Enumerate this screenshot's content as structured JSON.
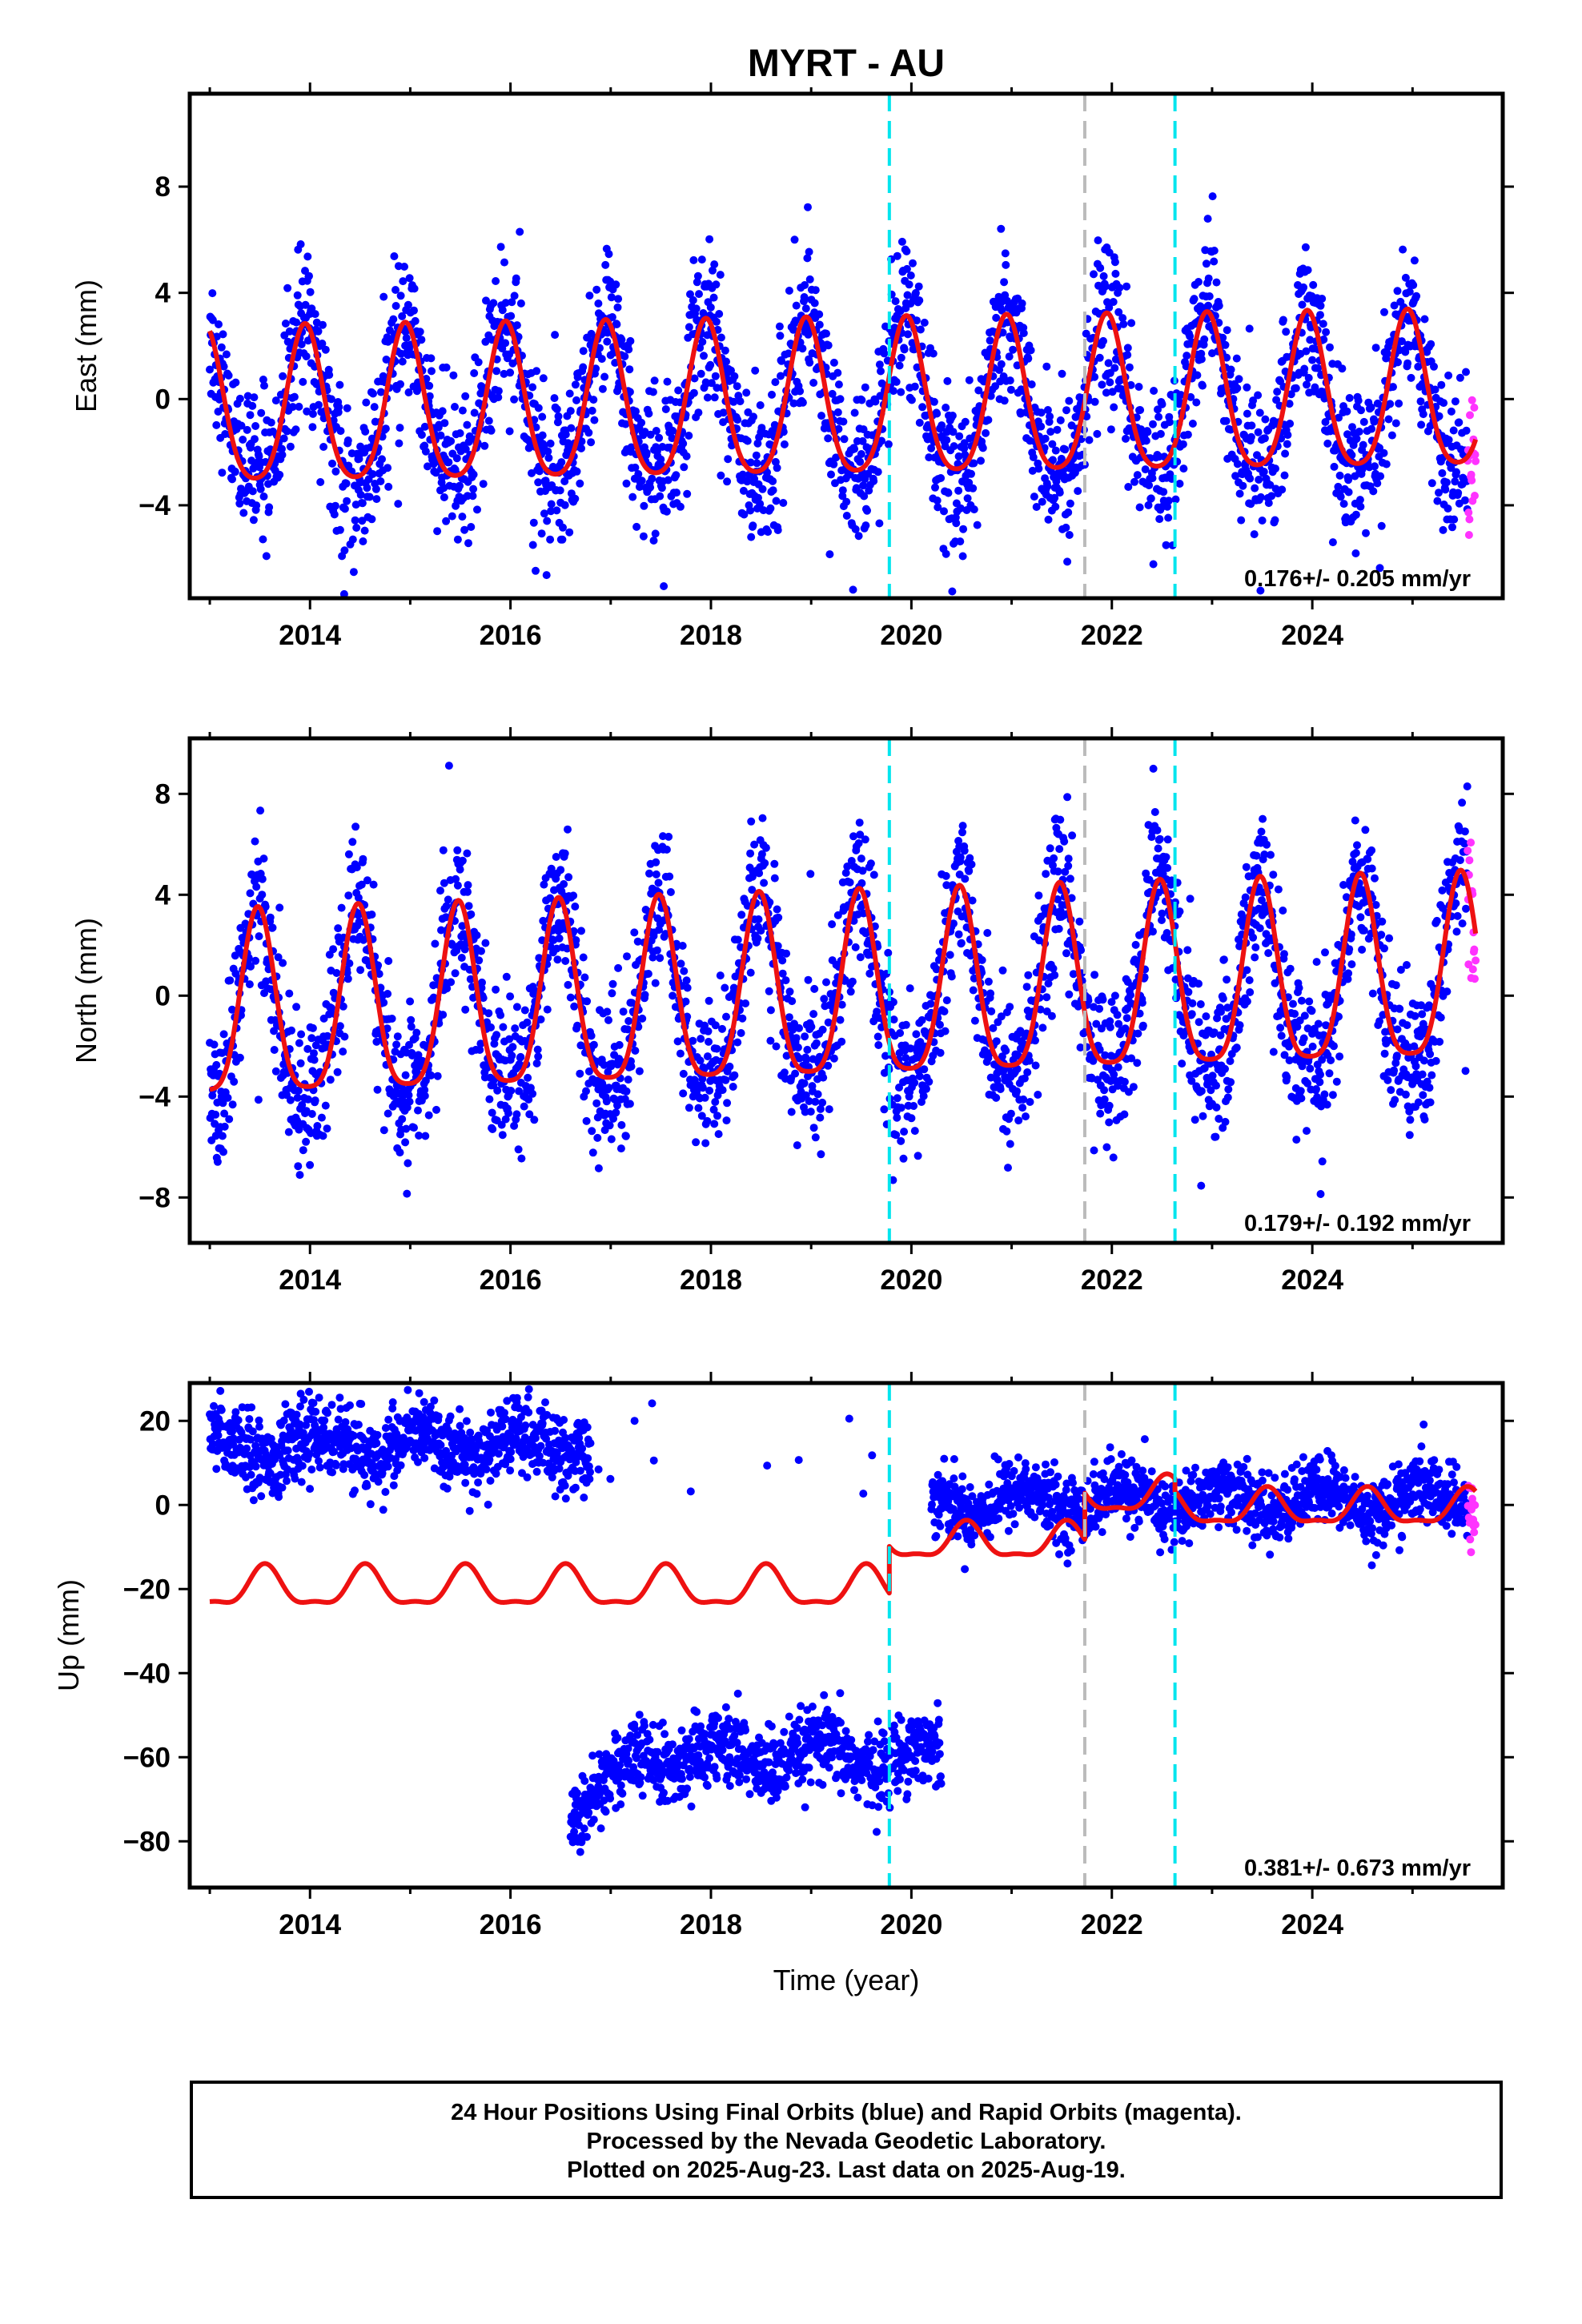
{
  "title": "MYRT - AU",
  "xlabel": "Time (year)",
  "colors": {
    "final_orbits": "#0000ff",
    "rapid_orbits": "#ff33ff",
    "model_fit": "#ee1111",
    "equipment_change": "#00e5ee",
    "earthquake_offset": "#bbbbbb"
  },
  "chart_data": [
    {
      "type": "scatter",
      "component": "east",
      "ylabel": "East (mm)",
      "rate_label": "0.176+/- 0.205 mm/yr",
      "xlim": [
        2012.8,
        2025.9
      ],
      "ylim": [
        -7.5,
        11.5
      ],
      "xticks": [
        2014,
        2016,
        2018,
        2020,
        2022,
        2024
      ],
      "xtick_labels": [
        "2014",
        "2016",
        "2018",
        "2020",
        "2022",
        "2024"
      ],
      "yticks": [
        -4,
        0,
        4,
        8
      ],
      "ytick_labels": [
        "−4",
        "0",
        "4",
        "8"
      ],
      "data_span": [
        2013.0,
        2025.63
      ],
      "rapid_start": 2025.55,
      "vlines_cyan": [
        2019.78,
        2022.63
      ],
      "vlines_gray": [
        2021.73
      ],
      "model": {
        "mean": -0.3,
        "trend": 0.05,
        "annual_amp": 2.9,
        "annual_peak": 0.95,
        "semiannual_amp": 0.5,
        "scatter": 1.4
      }
    },
    {
      "type": "scatter",
      "component": "north",
      "ylabel": "North (mm)",
      "rate_label": "0.179+/- 0.192 mm/yr",
      "xlim": [
        2012.8,
        2025.9
      ],
      "ylim": [
        -9.8,
        10.2
      ],
      "xticks": [
        2014,
        2016,
        2018,
        2020,
        2022,
        2024
      ],
      "xtick_labels": [
        "2014",
        "2016",
        "2018",
        "2020",
        "2022",
        "2024"
      ],
      "yticks": [
        -8,
        -4,
        0,
        4,
        8
      ],
      "ytick_labels": [
        "−8",
        "−4",
        "0",
        "4",
        "8"
      ],
      "data_span": [
        2013.0,
        2025.63
      ],
      "rapid_start": 2025.55,
      "vlines_cyan": [
        2019.78,
        2022.63
      ],
      "vlines_gray": [
        2021.73
      ],
      "model": {
        "mean": -0.2,
        "trend": 0.12,
        "annual_amp": 3.6,
        "annual_peak": 0.48,
        "semiannual_amp": 0.8,
        "scatter": 1.5
      }
    },
    {
      "type": "scatter",
      "component": "up",
      "ylabel": "Up (mm)",
      "rate_label": "0.381+/- 0.673 mm/yr",
      "xlim": [
        2012.8,
        2025.9
      ],
      "ylim": [
        -91,
        29
      ],
      "xticks": [
        2014,
        2016,
        2018,
        2020,
        2022,
        2024
      ],
      "xtick_labels": [
        "2014",
        "2016",
        "2018",
        "2020",
        "2022",
        "2024"
      ],
      "yticks": [
        -80,
        -60,
        -40,
        -20,
        0,
        20
      ],
      "ytick_labels": [
        "−80",
        "−60",
        "−40",
        "−20",
        "0",
        "20"
      ],
      "data_span": [
        2013.0,
        2025.63
      ],
      "rapid_start": 2025.55,
      "vlines_cyan": [
        2019.78,
        2022.63
      ],
      "vlines_gray": [
        2021.73
      ],
      "segments": [
        {
          "from": 2013.0,
          "to": 2016.8,
          "level": 14,
          "scatter": 4.5,
          "density": 1.0
        },
        {
          "from": 2016.8,
          "to": 2019.78,
          "level": 12,
          "scatter": 6,
          "density": 0.02
        },
        {
          "from": 2016.6,
          "to": 2020.3,
          "level": -60,
          "scatter": 4.5,
          "density": 1.0,
          "ramp_start": -72,
          "ramp_years": 0.8
        },
        {
          "from": 2020.2,
          "to": 2025.63,
          "level": 1,
          "scatter": 4.0,
          "density": 1.0
        }
      ],
      "model_segments": [
        {
          "from": 2013.0,
          "to": 2019.78,
          "level": -20,
          "amp": 4.5
        },
        {
          "from": 2019.78,
          "to": 2021.73,
          "level": -9,
          "amp": 4.0
        },
        {
          "from": 2021.73,
          "to": 2022.63,
          "level": 2,
          "amp": 4.0
        },
        {
          "from": 2022.63,
          "to": 2025.63,
          "level": -1,
          "amp": 4.0
        }
      ]
    }
  ],
  "footer": {
    "line1": "24 Hour Positions Using Final Orbits (blue) and Rapid Orbits (magenta).",
    "line2": "Processed by the Nevada Geodetic Laboratory.",
    "line3": "Plotted on 2025-Aug-23. Last data on 2025-Aug-19."
  }
}
